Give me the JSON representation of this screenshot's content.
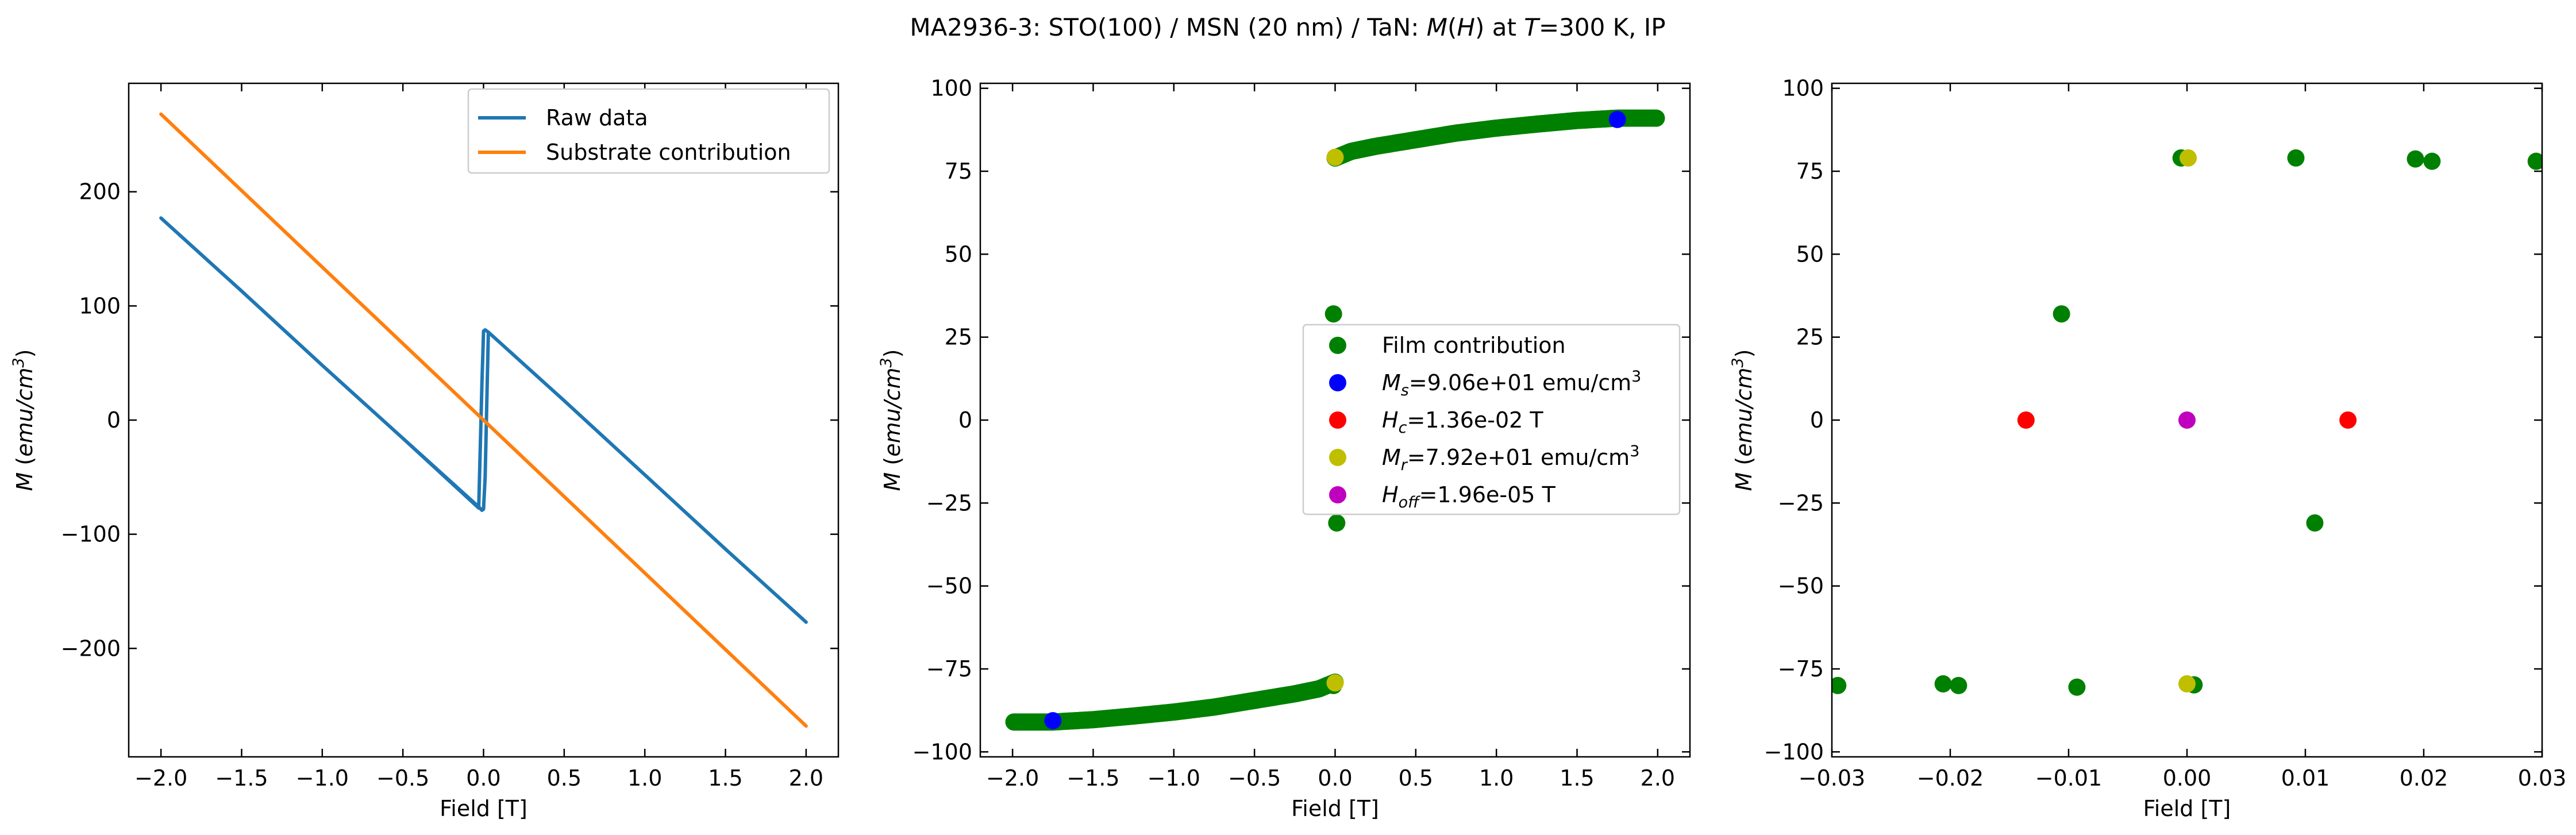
{
  "figure": {
    "title_parts": [
      "MA2936-3: STO(100)  / MSN (20 nm) / TaN: ",
      "M",
      "(",
      "H",
      ") at ",
      "T",
      "=300 K, IP"
    ]
  },
  "chart_data": [
    {
      "type": "line",
      "panel": "left",
      "xlabel": "Field [T]",
      "ylabel": "M (emu/cm³)",
      "xlim": [
        -2.2,
        2.2
      ],
      "ylim": [
        -295,
        295
      ],
      "xticks": [
        -2.0,
        -1.5,
        -1.0,
        -0.5,
        0.0,
        0.5,
        1.0,
        1.5,
        2.0
      ],
      "xtick_labels": [
        "−2.0",
        "−1.5",
        "−1.0",
        "−0.5",
        "0.0",
        "0.5",
        "1.0",
        "1.5",
        "2.0"
      ],
      "yticks": [
        -200,
        -100,
        0,
        100,
        200
      ],
      "ytick_labels": [
        "−200",
        "−100",
        "0",
        "100",
        "200"
      ],
      "grid": false,
      "legend": "top-right",
      "series": [
        {
          "name": "Raw data",
          "color": "#1f77b4",
          "x": [
            -2.0,
            -1.5,
            -1.0,
            -0.5,
            -0.03,
            -0.01,
            0.0,
            0.01,
            0.03,
            0.5,
            1.0,
            1.5,
            2.0,
            1.5,
            1.0,
            0.5,
            0.03,
            0.01,
            0.0,
            -0.01,
            -0.03,
            -0.5,
            -1.0,
            -1.5,
            -2.0
          ],
          "y": [
            177,
            113,
            48,
            -16,
            -76,
            -79,
            -78,
            -50,
            77,
            17,
            -48,
            -113,
            -177,
            -113,
            -48,
            17,
            77,
            79,
            78,
            32,
            -77,
            -16,
            48,
            113,
            177
          ]
        },
        {
          "name": "Substrate contribution",
          "color": "#ff7f0e",
          "x": [
            -2.0,
            2.0
          ],
          "y": [
            268,
            -268
          ]
        }
      ]
    },
    {
      "type": "scatter",
      "panel": "middle",
      "xlabel": "Field [T]",
      "ylabel": "M (emu/cm³)",
      "xlim": [
        -2.2,
        2.2
      ],
      "ylim": [
        -101.5,
        101.5
      ],
      "xticks": [
        -2.0,
        -1.5,
        -1.0,
        -0.5,
        0.0,
        0.5,
        1.0,
        1.5,
        2.0
      ],
      "xtick_labels": [
        "−2.0",
        "−1.5",
        "−1.0",
        "−0.5",
        "0.0",
        "0.5",
        "1.0",
        "1.5",
        "2.0"
      ],
      "yticks": [
        -100,
        -75,
        -50,
        -25,
        0,
        25,
        50,
        75,
        100
      ],
      "ytick_labels": [
        "−100",
        "−75",
        "−50",
        "−25",
        "0",
        "25",
        "50",
        "75",
        "100"
      ],
      "grid": false,
      "legend": "center-right",
      "film_curve": {
        "x": [
          0.0,
          0.1,
          0.25,
          0.5,
          0.75,
          1.0,
          1.25,
          1.5,
          1.75,
          2.0
        ],
        "y": [
          79,
          81,
          82.5,
          84.5,
          86.5,
          88,
          89.2,
          90.3,
          91,
          91
        ]
      },
      "series": [
        {
          "name": "Film contribution",
          "color": "#008000",
          "x": [
            -0.01,
            0.0,
            0.01,
            -0.01
          ],
          "y": [
            32,
            79,
            -31,
            -80
          ]
        },
        {
          "name": "Ms",
          "color": "#0000ff",
          "x": [
            1.75,
            -1.75
          ],
          "y": [
            90.6,
            -90.6
          ]
        },
        {
          "name": "Hc",
          "color": "#ff0000",
          "x": [
            -0.0136,
            0.0136
          ],
          "y": [
            0,
            0
          ]
        },
        {
          "name": "Mr",
          "color": "#bfbf00",
          "x": [
            0.0,
            0.0
          ],
          "y": [
            79.2,
            -79.2
          ]
        },
        {
          "name": "Hoff",
          "color": "#bf00bf",
          "x": [
            0.0
          ],
          "y": [
            0
          ]
        }
      ],
      "legend_entries": [
        {
          "sym": "",
          "sub": "",
          "text": "Film contribution",
          "sup": "",
          "color": "#008000"
        },
        {
          "sym": "M",
          "sub": "s",
          "text": "=9.06e+01 emu/cm",
          "sup": "3",
          "color": "#0000ff"
        },
        {
          "sym": "H",
          "sub": "c",
          "text": "=1.36e-02 T",
          "sup": "",
          "color": "#ff0000"
        },
        {
          "sym": "M",
          "sub": "r",
          "text": "=7.92e+01 emu/cm",
          "sup": "3",
          "color": "#bfbf00"
        },
        {
          "sym": "H",
          "sub": "off",
          "text": "=1.96e-05 T",
          "sup": "",
          "color": "#bf00bf"
        }
      ]
    },
    {
      "type": "scatter",
      "panel": "right",
      "xlabel": "Field [T]",
      "ylabel": "M (emu/cm³)",
      "xlim": [
        -0.03,
        0.03
      ],
      "ylim": [
        -101.5,
        101.5
      ],
      "xticks": [
        -0.03,
        -0.02,
        -0.01,
        0.0,
        0.01,
        0.02,
        0.03
      ],
      "xtick_labels": [
        "−0.03",
        "−0.02",
        "−0.01",
        "0.00",
        "0.01",
        "0.02",
        "0.03"
      ],
      "yticks": [
        -100,
        -75,
        -50,
        -25,
        0,
        25,
        50,
        75,
        100
      ],
      "ytick_labels": [
        "−100",
        "−75",
        "−50",
        "−25",
        "0",
        "25",
        "50",
        "75",
        "100"
      ],
      "grid": false,
      "series": [
        {
          "name": "Film contribution",
          "color": "#008000",
          "x": [
            -0.0005,
            0.0092,
            0.0193,
            0.0207,
            0.0295,
            -0.0106,
            0.0108,
            -0.0295,
            -0.0206,
            -0.0193,
            -0.0093,
            0.0006
          ],
          "y": [
            79,
            79,
            78.7,
            78,
            78,
            32,
            -31,
            -80,
            -79.5,
            -80,
            -80.5,
            -79.8
          ]
        },
        {
          "name": "Hc",
          "color": "#ff0000",
          "x": [
            -0.0136,
            0.0136
          ],
          "y": [
            0,
            0
          ]
        },
        {
          "name": "Mr",
          "color": "#bfbf00",
          "x": [
            0.0001,
            0.0
          ],
          "y": [
            79,
            -79.5
          ]
        },
        {
          "name": "Hoff",
          "color": "#bf00bf",
          "x": [
            0.0
          ],
          "y": [
            0
          ]
        }
      ]
    }
  ]
}
